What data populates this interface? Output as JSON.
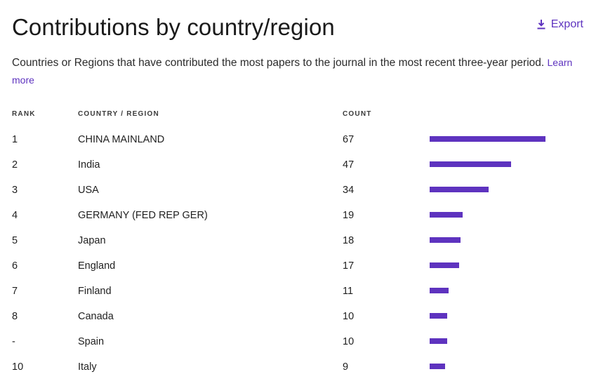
{
  "header": {
    "title": "Contributions by country/region",
    "export_label": "Export",
    "export_icon": "download-icon"
  },
  "description": {
    "text": "Countries or Regions that have contributed the most papers to the journal in the most recent three-year period.",
    "learn_more": "Learn more"
  },
  "table": {
    "columns": {
      "rank": "RANK",
      "country": "COUNTRY / REGION",
      "count": "COUNT"
    },
    "bar_scale_max": 67,
    "bar_color": "#5e33bf",
    "rows": [
      {
        "rank": "1",
        "country": "CHINA MAINLAND",
        "count": 67
      },
      {
        "rank": "2",
        "country": "India",
        "count": 47
      },
      {
        "rank": "3",
        "country": "USA",
        "count": 34
      },
      {
        "rank": "4",
        "country": "GERMANY (FED REP GER)",
        "count": 19
      },
      {
        "rank": "5",
        "country": "Japan",
        "count": 18
      },
      {
        "rank": "6",
        "country": "England",
        "count": 17
      },
      {
        "rank": "7",
        "country": "Finland",
        "count": 11
      },
      {
        "rank": "8",
        "country": "Canada",
        "count": 10
      },
      {
        "rank": "-",
        "country": "Spain",
        "count": 10
      },
      {
        "rank": "10",
        "country": "Italy",
        "count": 9
      }
    ]
  }
}
